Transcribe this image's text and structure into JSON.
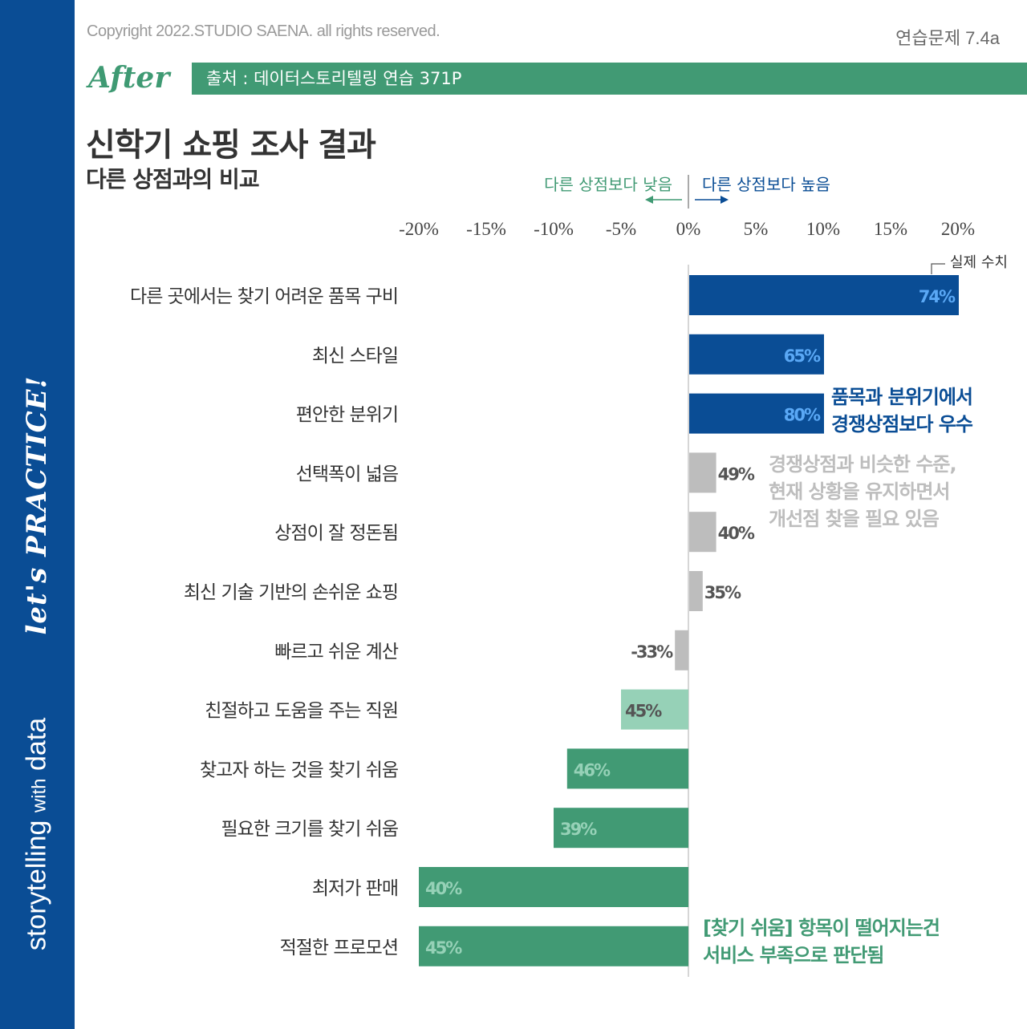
{
  "copyright": "Copyright 2022.STUDIO SAENA. all rights reserved.",
  "exercise_label": "연습문제 7.4a",
  "after_label": "After",
  "source_label": "출처 : 데이터스토리텔링 연습 371P",
  "sidebar": {
    "lets_practice": "let's PRACTICE!",
    "brand_main": "storytelling",
    "brand_small": "with",
    "brand_end": "data"
  },
  "colors": {
    "brand_blue": "#0a4d95",
    "brand_green": "#419a74",
    "light_green": "#96d1b7",
    "gray": "#bdbdbd",
    "label_blue": "#5aa8f5",
    "label_gray": "#555555"
  },
  "chart_data": {
    "type": "bar",
    "orientation": "horizontal",
    "title": "신학기 쇼핑 조사 결과",
    "subtitle": "다른 상점과의 비교",
    "direction_lower": "다른 상점보다 낮음",
    "direction_higher": "다른 상점보다 높음",
    "x_ticks": [
      "-20%",
      "-15%",
      "-10%",
      "-5%",
      "0%",
      "5%",
      "10%",
      "15%",
      "20%"
    ],
    "xlim": [
      -20,
      20
    ],
    "legend_actual": "실제 수치",
    "categories": [
      "다른 곳에서는 찾기 어려운 품목 구비",
      "최신 스타일",
      "편안한 분위기",
      "선택폭이 넓음",
      "상점이 잘 정돈됨",
      "최신 기술 기반의 손쉬운 쇼핑",
      "빠르고 쉬운 계산",
      "친절하고 도움을 주는 직원",
      "찾고자 하는 것을 찾기 쉬움",
      "필요한 크기를 찾기 쉬움",
      "최저가 판매",
      "적절한 프로모션"
    ],
    "values": [
      20,
      10,
      10,
      2,
      2,
      1,
      -1,
      -5,
      -9,
      -10,
      -20,
      -20
    ],
    "actual_labels": [
      "74%",
      "65%",
      "80%",
      "49%",
      "40%",
      "35%",
      "-33%",
      "45%",
      "46%",
      "39%",
      "40%",
      "45%"
    ],
    "bar_colors": [
      "#0a4d95",
      "#0a4d95",
      "#0a4d95",
      "#bdbdbd",
      "#bdbdbd",
      "#bdbdbd",
      "#bdbdbd",
      "#96d1b7",
      "#419a74",
      "#419a74",
      "#419a74",
      "#419a74"
    ],
    "annotations": {
      "blue": [
        "품목과 분위기에서",
        "경쟁상점보다 우수"
      ],
      "gray": [
        "경쟁상점과 비슷한 수준,",
        "현재 상황을 유지하면서",
        "개선점 찾을 필요 있음"
      ],
      "green": [
        "[찾기 쉬움] 항목이 떨어지는건",
        "서비스 부족으로 판단됨"
      ]
    }
  }
}
